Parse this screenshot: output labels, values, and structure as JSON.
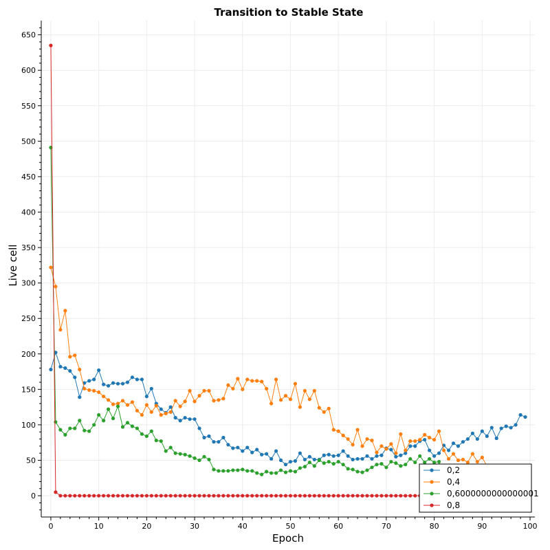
{
  "chart_data": {
    "type": "line",
    "title": "Transition to Stable State",
    "xlabel": "Epoch",
    "ylabel": "Live cell",
    "xlim": [
      -2,
      101
    ],
    "ylim": [
      -30,
      670
    ],
    "xticks": [
      0,
      10,
      20,
      30,
      40,
      50,
      60,
      70,
      80,
      90,
      100
    ],
    "yticks": [
      0,
      50,
      100,
      150,
      200,
      250,
      300,
      350,
      400,
      450,
      500,
      550,
      600,
      650
    ],
    "grid": true,
    "legend_position": "bottom-right",
    "series": [
      {
        "name": "0,2",
        "color": "#1f77b4",
        "values": [
          178,
          202,
          182,
          180,
          176,
          167,
          139,
          159,
          162,
          164,
          177,
          157,
          155,
          159,
          158,
          158,
          160,
          167,
          164,
          164,
          140,
          151,
          130,
          122,
          117,
          125,
          110,
          106,
          110,
          108,
          108,
          95,
          82,
          84,
          76,
          76,
          82,
          72,
          67,
          68,
          63,
          68,
          61,
          65,
          58,
          59,
          52,
          63,
          50,
          44,
          48,
          49,
          60,
          51,
          55,
          51,
          51,
          57,
          58,
          56,
          57,
          63,
          56,
          51,
          52,
          52,
          56,
          52,
          56,
          57,
          67,
          65,
          55,
          57,
          60,
          70,
          70,
          77,
          79,
          64,
          56,
          60,
          71,
          64,
          74,
          70,
          76,
          80,
          88,
          80,
          91,
          84,
          96,
          81,
          95,
          98,
          96,
          100,
          114,
          111
        ]
      },
      {
        "name": "0,4",
        "color": "#ff7f0e",
        "values": [
          322,
          295,
          234,
          261,
          196,
          198,
          178,
          151,
          149,
          148,
          146,
          140,
          135,
          129,
          130,
          134,
          128,
          132,
          120,
          114,
          128,
          118,
          127,
          114,
          116,
          118,
          134,
          126,
          133,
          148,
          133,
          141,
          148,
          148,
          134,
          135,
          137,
          156,
          151,
          165,
          150,
          164,
          162,
          162,
          161,
          151,
          130,
          164,
          135,
          141,
          136,
          158,
          125,
          148,
          136,
          148,
          124,
          118,
          123,
          93,
          91,
          85,
          80,
          72,
          93,
          70,
          80,
          78,
          61,
          70,
          66,
          73,
          60,
          87,
          64,
          77,
          77,
          79,
          86,
          82,
          79,
          91,
          64,
          52,
          59,
          50,
          51,
          47,
          59,
          48,
          54,
          42,
          0,
          0,
          0,
          0,
          0,
          0,
          0,
          0
        ]
      },
      {
        "name": "0,6000000000000001",
        "color": "#2ca02c",
        "values": [
          491,
          104,
          93,
          86,
          95,
          95,
          106,
          92,
          91,
          100,
          114,
          106,
          122,
          109,
          126,
          97,
          103,
          98,
          95,
          87,
          84,
          91,
          78,
          77,
          63,
          68,
          60,
          59,
          58,
          56,
          53,
          50,
          55,
          51,
          37,
          35,
          35,
          35,
          36,
          36,
          37,
          35,
          35,
          32,
          30,
          34,
          32,
          32,
          36,
          33,
          35,
          34,
          39,
          41,
          47,
          42,
          50,
          46,
          48,
          45,
          48,
          44,
          38,
          37,
          34,
          33,
          36,
          40,
          44,
          45,
          40,
          48,
          46,
          42,
          44,
          52,
          47,
          56,
          47,
          52,
          47,
          48,
          0,
          0,
          0,
          0,
          0,
          0,
          0,
          0,
          0,
          0,
          0,
          0,
          0,
          0,
          0,
          0,
          0,
          0
        ]
      },
      {
        "name": "0,8",
        "color": "#d62728",
        "values": [
          635,
          5,
          0,
          0,
          0,
          0,
          0,
          0,
          0,
          0,
          0,
          0,
          0,
          0,
          0,
          0,
          0,
          0,
          0,
          0,
          0,
          0,
          0,
          0,
          0,
          0,
          0,
          0,
          0,
          0,
          0,
          0,
          0,
          0,
          0,
          0,
          0,
          0,
          0,
          0,
          0,
          0,
          0,
          0,
          0,
          0,
          0,
          0,
          0,
          0,
          0,
          0,
          0,
          0,
          0,
          0,
          0,
          0,
          0,
          0,
          0,
          0,
          0,
          0,
          0,
          0,
          0,
          0,
          0,
          0,
          0,
          0,
          0,
          0,
          0,
          0,
          0,
          0
        ]
      }
    ]
  }
}
